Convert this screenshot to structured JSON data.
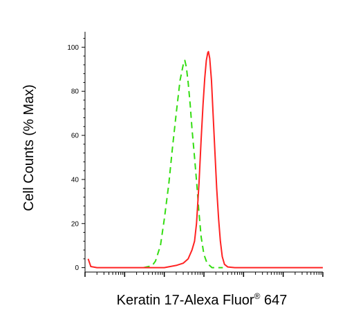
{
  "chart_data": {
    "type": "line",
    "title": "",
    "xlabel_main": "Keratin 17-Alexa Fluor",
    "xlabel_sup": "®",
    "xlabel_tail": " 647",
    "ylabel": "Cell Counts (% Max)",
    "x_scale": "log",
    "xlim": [
      0.1,
      100000
    ],
    "ylim": [
      -2,
      107
    ],
    "y_ticks": [
      0,
      20,
      40,
      60,
      80,
      100
    ],
    "y_tick_labels": [
      "0",
      "20",
      "40",
      "60",
      "80",
      "100"
    ],
    "grid": false,
    "series": [
      {
        "color": "#33dd11",
        "dash": "dashed",
        "points": [
          [
            3,
            0
          ],
          [
            4,
            0.5
          ],
          [
            5,
            1
          ],
          [
            6,
            3
          ],
          [
            8,
            10
          ],
          [
            10,
            22
          ],
          [
            13,
            38
          ],
          [
            16,
            54
          ],
          [
            20,
            70
          ],
          [
            25,
            85
          ],
          [
            30,
            92
          ],
          [
            33,
            94
          ],
          [
            36,
            91
          ],
          [
            40,
            84
          ],
          [
            45,
            74
          ],
          [
            50,
            63
          ],
          [
            58,
            50
          ],
          [
            66,
            38
          ],
          [
            75,
            25
          ],
          [
            85,
            14
          ],
          [
            100,
            6
          ],
          [
            120,
            2
          ],
          [
            160,
            0
          ],
          [
            300,
            0
          ]
        ]
      },
      {
        "color": "#ff2222",
        "dash": "solid",
        "points": [
          [
            0.12,
            4
          ],
          [
            0.14,
            0.5
          ],
          [
            0.2,
            0
          ],
          [
            1,
            0
          ],
          [
            10,
            0
          ],
          [
            20,
            1
          ],
          [
            30,
            2
          ],
          [
            40,
            4
          ],
          [
            50,
            8
          ],
          [
            58,
            12
          ],
          [
            65,
            20
          ],
          [
            75,
            38
          ],
          [
            85,
            58
          ],
          [
            95,
            74
          ],
          [
            105,
            86
          ],
          [
            115,
            94
          ],
          [
            125,
            97.5
          ],
          [
            130,
            98
          ],
          [
            140,
            95
          ],
          [
            155,
            85
          ],
          [
            170,
            70
          ],
          [
            190,
            52
          ],
          [
            210,
            36
          ],
          [
            235,
            22
          ],
          [
            260,
            12
          ],
          [
            290,
            5
          ],
          [
            330,
            1.5
          ],
          [
            400,
            0.3
          ],
          [
            600,
            0
          ],
          [
            5000,
            0
          ],
          [
            100000,
            0
          ]
        ]
      }
    ]
  }
}
